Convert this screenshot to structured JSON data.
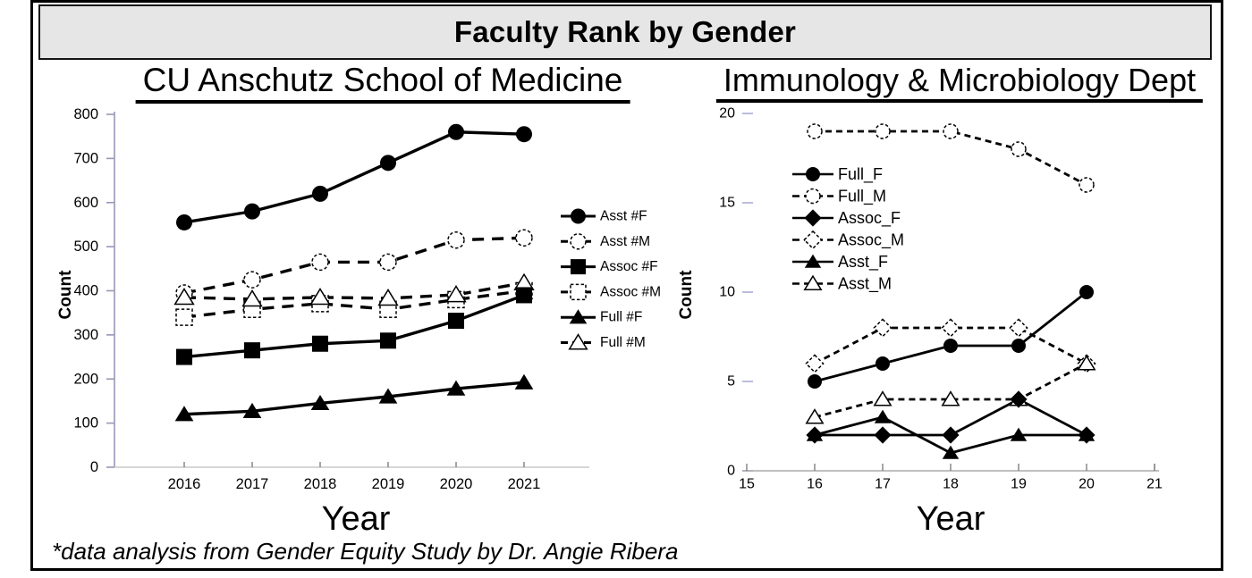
{
  "page": {
    "title": "Faculty Rank by Gender",
    "footnote": "*data analysis from Gender Equity Study by Dr. Angie Ribera"
  },
  "colors": {
    "ink": "#000000",
    "title_bar_bg": "#e6e6e6",
    "left_y_axis": "#9797b8",
    "light_axis": "#c9c9c9",
    "lavender_tick": "#b5b5d8",
    "x_tick": "#777777"
  },
  "chart_data": [
    {
      "type": "line",
      "title": "CU Anschutz School of Medicine",
      "xlabel": "Year",
      "ylabel": "Count",
      "x": [
        2016,
        2017,
        2018,
        2019,
        2020,
        2021
      ],
      "xticks": [
        2016,
        2017,
        2018,
        2019,
        2020,
        2021
      ],
      "ylim": [
        0,
        800
      ],
      "yticks": [
        0,
        100,
        200,
        300,
        400,
        500,
        600,
        700,
        800
      ],
      "grid": false,
      "legend_position": "right-outside",
      "series": [
        {
          "name": "Asst #F",
          "marker": "circle",
          "filled": true,
          "dashed": false,
          "values": [
            555,
            580,
            620,
            690,
            760,
            755
          ]
        },
        {
          "name": "Asst #M",
          "marker": "circle",
          "filled": false,
          "dashed": true,
          "values": [
            395,
            425,
            465,
            465,
            515,
            520
          ]
        },
        {
          "name": "Assoc #F",
          "marker": "square",
          "filled": true,
          "dashed": false,
          "values": [
            250,
            265,
            280,
            287,
            332,
            390
          ]
        },
        {
          "name": "Assoc #M",
          "marker": "square",
          "filled": false,
          "dashed": true,
          "values": [
            340,
            358,
            371,
            358,
            380,
            400
          ]
        },
        {
          "name": "Full #F",
          "marker": "triangle",
          "filled": true,
          "dashed": false,
          "values": [
            120,
            127,
            145,
            160,
            178,
            192
          ]
        },
        {
          "name": "Full #M",
          "marker": "triangle",
          "filled": false,
          "dashed": true,
          "values": [
            385,
            381,
            385,
            383,
            391,
            418
          ]
        }
      ]
    },
    {
      "type": "line",
      "title": "Immunology & Microbiology Dept",
      "xlabel": "Year",
      "ylabel": "Count",
      "x": [
        16,
        17,
        18,
        19,
        20
      ],
      "xticks": [
        15,
        16,
        17,
        18,
        19,
        20,
        21
      ],
      "ylim": [
        0,
        20
      ],
      "yticks": [
        0,
        5,
        10,
        15,
        20
      ],
      "grid": false,
      "legend_position": "upper-left-inside",
      "series": [
        {
          "name": "Full_F",
          "marker": "circle",
          "filled": true,
          "dashed": false,
          "values": [
            5,
            6,
            7,
            7,
            10
          ]
        },
        {
          "name": "Full_M",
          "marker": "circle",
          "filled": false,
          "dashed": true,
          "values": [
            19,
            19,
            19,
            18,
            16
          ]
        },
        {
          "name": "Assoc_F",
          "marker": "diamond",
          "filled": true,
          "dashed": false,
          "values": [
            2,
            2,
            2,
            4,
            2
          ]
        },
        {
          "name": "Assoc_M",
          "marker": "diamond",
          "filled": false,
          "dashed": true,
          "values": [
            6,
            8,
            8,
            8,
            6
          ]
        },
        {
          "name": "Asst_F",
          "marker": "triangle",
          "filled": true,
          "dashed": false,
          "values": [
            2,
            3,
            1,
            2,
            2
          ]
        },
        {
          "name": "Asst_M",
          "marker": "triangle",
          "filled": false,
          "dashed": true,
          "values": [
            3,
            4,
            4,
            4,
            6
          ]
        }
      ]
    }
  ]
}
